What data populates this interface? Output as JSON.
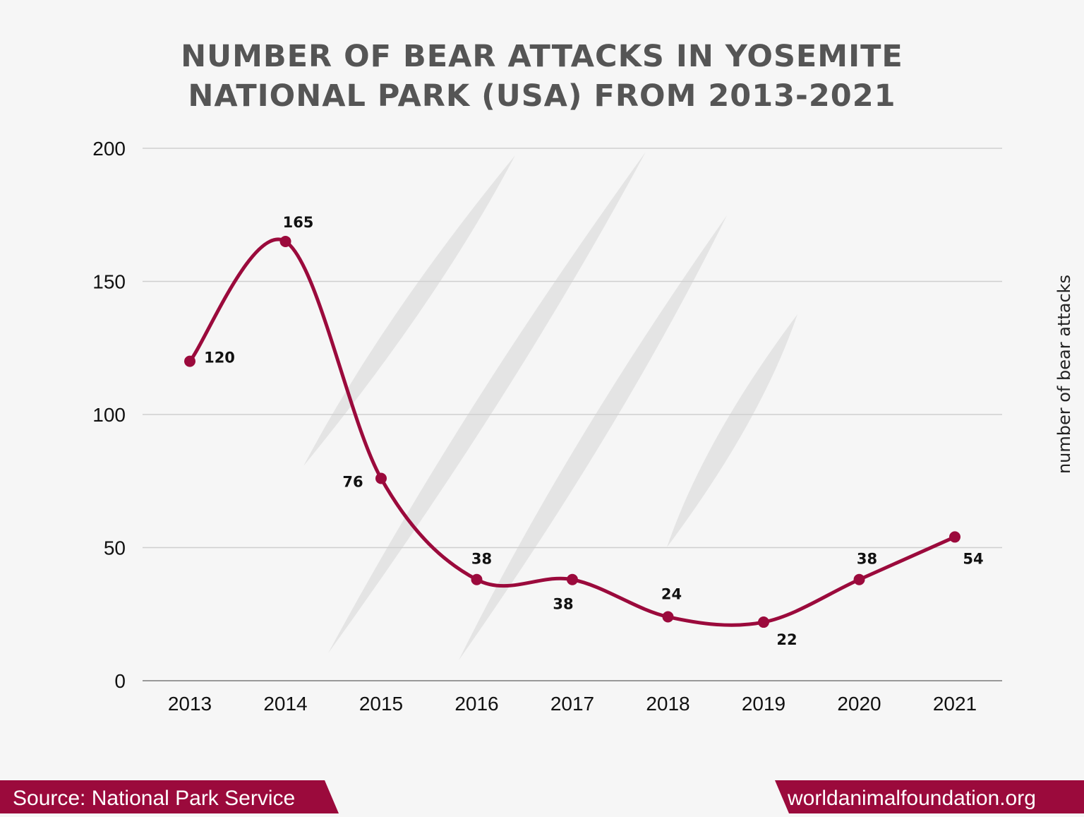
{
  "chart_data": {
    "type": "line",
    "title_line1": "NUMBER OF BEAR ATTACKS IN YOSEMITE",
    "title_line2": "NATIONAL PARK (USA) FROM 2013-2021",
    "ylabel": "number of bear attacks",
    "x": [
      "2013",
      "2014",
      "2015",
      "2016",
      "2017",
      "2018",
      "2019",
      "2020",
      "2021"
    ],
    "values": [
      120,
      165,
      76,
      38,
      38,
      24,
      22,
      38,
      54
    ],
    "ylim": [
      0,
      200
    ],
    "yticks": [
      0,
      50,
      100,
      150,
      200
    ],
    "grid": true,
    "smooth": true,
    "line_color": "#9b0a3c"
  },
  "footer": {
    "source": "Source: National Park Service",
    "website": "worldanimalfoundation.org",
    "banner_color": "#9b0a3c"
  }
}
